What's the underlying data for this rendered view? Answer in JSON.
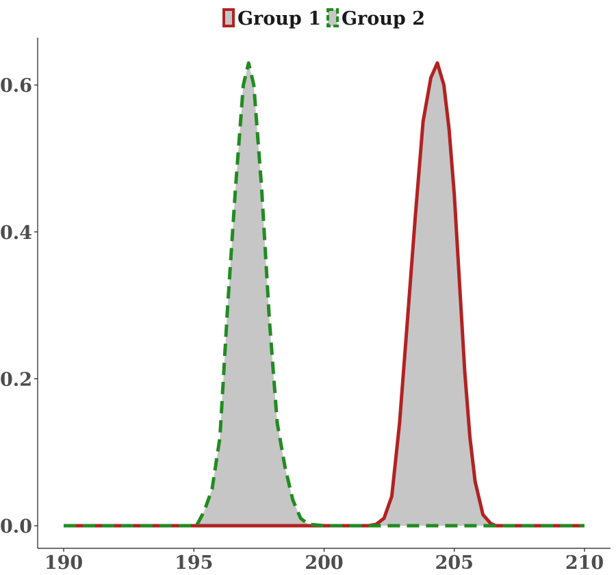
{
  "chart_data": {
    "type": "area",
    "title": "",
    "xlabel": "",
    "ylabel": "",
    "xlim": [
      190,
      210
    ],
    "ylim": [
      0,
      0.63
    ],
    "x_ticks": [
      "190",
      "195",
      "200",
      "205",
      "210"
    ],
    "y_ticks": [
      "0.0",
      "0.2",
      "0.4",
      "0.6"
    ],
    "grid": false,
    "legend_position": "top",
    "fill_color": "#c6c6c6",
    "series": [
      {
        "name": "Group 1",
        "color": "#b22222",
        "line_style": "solid",
        "points": [
          [
            190,
            0
          ],
          [
            201.7,
            0
          ],
          [
            202.0,
            0.002
          ],
          [
            202.3,
            0.01
          ],
          [
            202.6,
            0.04
          ],
          [
            202.9,
            0.14
          ],
          [
            203.2,
            0.28
          ],
          [
            203.5,
            0.42
          ],
          [
            203.8,
            0.55
          ],
          [
            204.1,
            0.61
          ],
          [
            204.35,
            0.63
          ],
          [
            204.6,
            0.6
          ],
          [
            204.8,
            0.54
          ],
          [
            205.0,
            0.45
          ],
          [
            205.2,
            0.33
          ],
          [
            205.4,
            0.21
          ],
          [
            205.6,
            0.12
          ],
          [
            205.8,
            0.06
          ],
          [
            206.1,
            0.015
          ],
          [
            206.4,
            0.003
          ],
          [
            206.6,
            0
          ],
          [
            210,
            0
          ]
        ]
      },
      {
        "name": "Group 2",
        "color": "#228b22",
        "line_style": "dashed",
        "points": [
          [
            190,
            0
          ],
          [
            195.1,
            0
          ],
          [
            195.4,
            0.02
          ],
          [
            195.7,
            0.05
          ],
          [
            196.0,
            0.12
          ],
          [
            196.3,
            0.3
          ],
          [
            196.6,
            0.46
          ],
          [
            196.9,
            0.6
          ],
          [
            197.1,
            0.63
          ],
          [
            197.3,
            0.6
          ],
          [
            197.6,
            0.46
          ],
          [
            197.9,
            0.28
          ],
          [
            198.2,
            0.14
          ],
          [
            198.5,
            0.08
          ],
          [
            198.8,
            0.035
          ],
          [
            199.1,
            0.01
          ],
          [
            199.4,
            0.002
          ],
          [
            200.0,
            0
          ],
          [
            210,
            0
          ]
        ]
      }
    ]
  }
}
